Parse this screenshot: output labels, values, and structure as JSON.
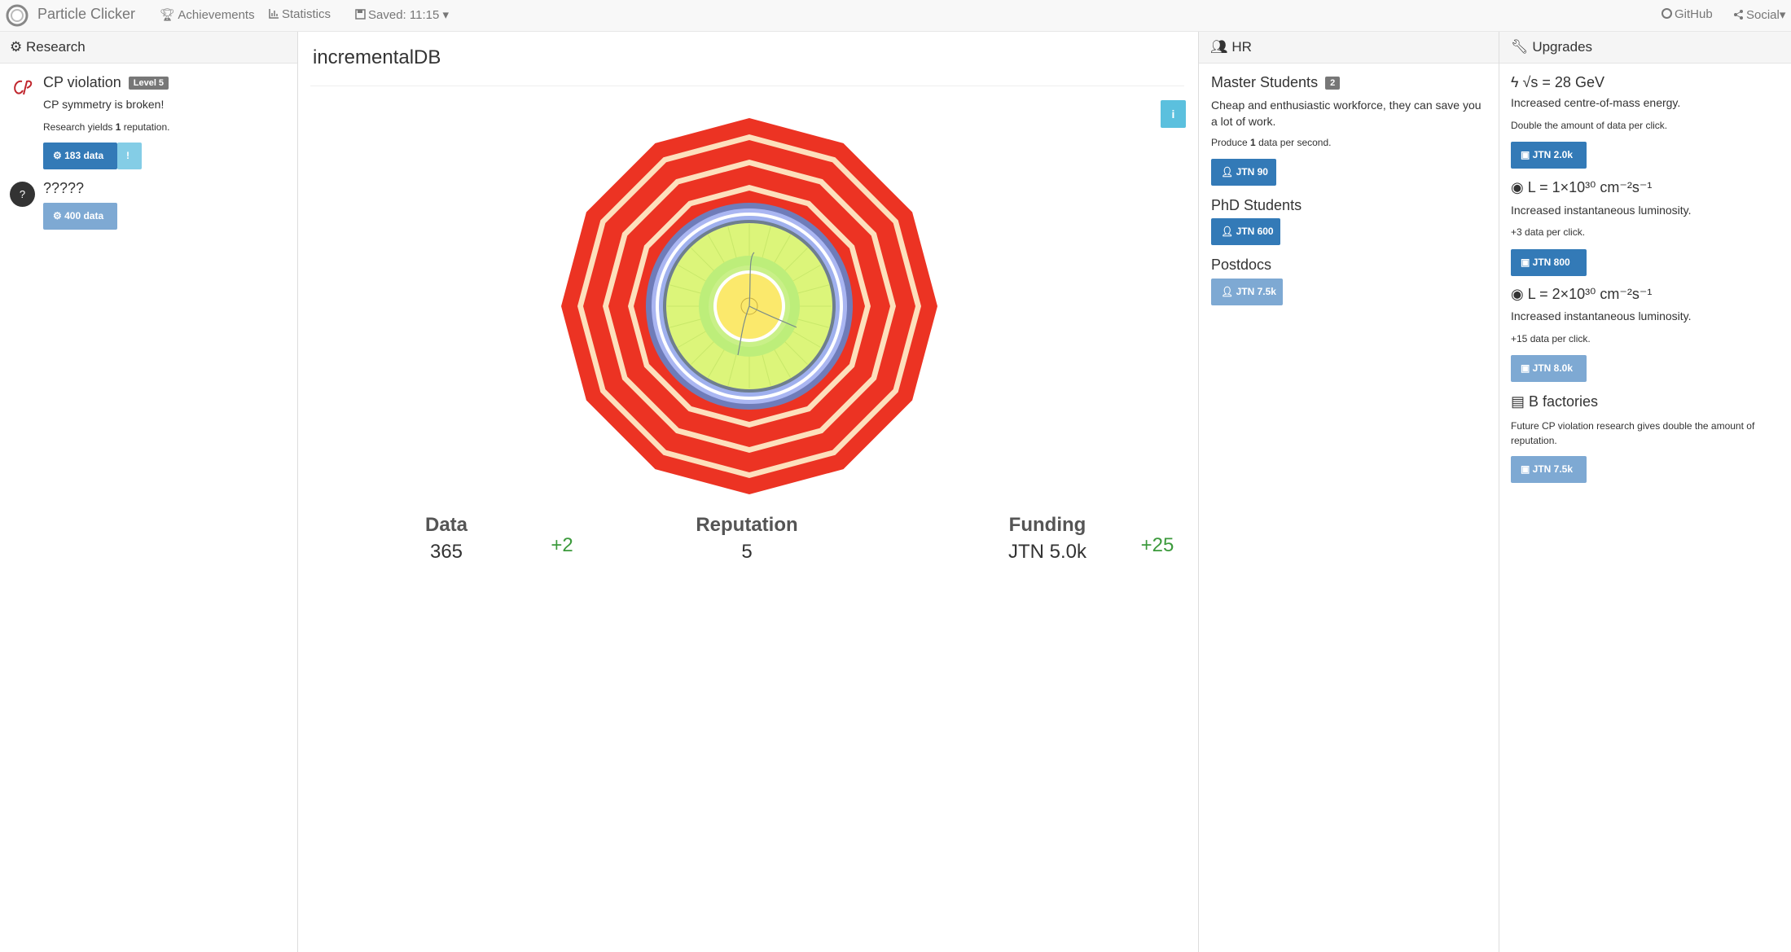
{
  "navbar": {
    "brand": "Particle Clicker",
    "achievements": "Achievements",
    "statistics": "Statistics",
    "saved": "Saved: 11:15",
    "github": "GitHub",
    "social": "Social"
  },
  "research": {
    "title": "Research",
    "items": [
      {
        "name": "CP violation",
        "level": "Level 5",
        "description": "CP symmetry is broken!",
        "yield": {
          "before": "Research yields",
          "amount": "1",
          "after": "reputation."
        },
        "button": "183 data",
        "alert": "!"
      },
      {
        "icon": "?",
        "name": "?????",
        "button": "400 data"
      }
    ]
  },
  "lab": {
    "title": "incrementalDB",
    "info": "i",
    "stats": [
      {
        "label": "Data",
        "value": "365",
        "rate": "+2"
      },
      {
        "label": "Reputation",
        "value": "5"
      },
      {
        "label": "Funding",
        "value": "JTN 5.0k",
        "rate": "+25"
      }
    ]
  },
  "hr": {
    "title": "HR",
    "workers": [
      {
        "name": "Master Students",
        "count": "2",
        "description": "Cheap and enthusiastic workforce, they can save you a lot of work.",
        "produce": {
          "before": "Produce",
          "amount": "1",
          "after": "data per second."
        },
        "button": "JTN 90"
      },
      {
        "name": "PhD Students",
        "button": "JTN 600"
      },
      {
        "name": "Postdocs",
        "button": "JTN 7.5k"
      }
    ]
  },
  "upgrades": {
    "title": "Upgrades",
    "items": [
      {
        "name": "√s = 28 GeV",
        "description": "Increased centre-of-mass energy.",
        "effect": "Double the amount of data per click.",
        "button": "JTN 2.0k"
      },
      {
        "name": "L = 1×10³⁰ cm⁻²s⁻¹",
        "description": "Increased instantaneous luminosity.",
        "effect": "+3 data per click.",
        "button": "JTN 800"
      },
      {
        "name": "L = 2×10³⁰ cm⁻²s⁻¹",
        "description": "Increased instantaneous luminosity.",
        "effect": "+15 data per click.",
        "button": "JTN 8.0k"
      },
      {
        "name": "B factories",
        "effect": "Future CP violation research gives double the amount of reputation.",
        "button": "JTN 7.5k"
      }
    ]
  }
}
